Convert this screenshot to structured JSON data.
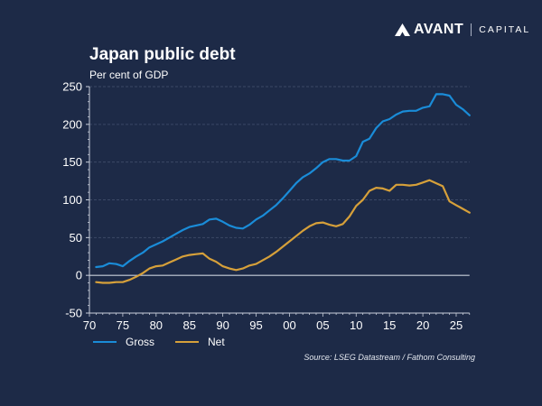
{
  "brand": {
    "name": "AVANT",
    "suffix": "CAPITAL"
  },
  "chart_data": {
    "type": "line",
    "title": "Japan public debt",
    "subtitle": "Per cent of GDP",
    "xlabel": "",
    "ylabel": "Per cent of GDP",
    "xlim": [
      1970,
      2027
    ],
    "ylim": [
      -50,
      250
    ],
    "yticks": [
      -50,
      0,
      50,
      100,
      150,
      200,
      250
    ],
    "xticks": [
      1970,
      1975,
      1980,
      1985,
      1990,
      1995,
      2000,
      2005,
      2010,
      2015,
      2020,
      2025
    ],
    "xtick_labels": [
      "70",
      "75",
      "80",
      "85",
      "90",
      "95",
      "00",
      "05",
      "10",
      "15",
      "20",
      "25"
    ],
    "grid": true,
    "legend_position": "bottom-left",
    "x": [
      1971,
      1972,
      1973,
      1974,
      1975,
      1976,
      1977,
      1978,
      1979,
      1980,
      1981,
      1982,
      1983,
      1984,
      1985,
      1986,
      1987,
      1988,
      1989,
      1990,
      1991,
      1992,
      1993,
      1994,
      1995,
      1996,
      1997,
      1998,
      1999,
      2000,
      2001,
      2002,
      2003,
      2004,
      2005,
      2006,
      2007,
      2008,
      2009,
      2010,
      2011,
      2012,
      2013,
      2014,
      2015,
      2016,
      2017,
      2018,
      2019,
      2020,
      2021,
      2022,
      2023,
      2024,
      2025,
      2026,
      2027
    ],
    "series": [
      {
        "name": "Gross",
        "color": "#1a8cd8",
        "values": [
          11,
          12,
          16,
          15,
          12,
          19,
          25,
          30,
          37,
          41,
          45,
          50,
          55,
          60,
          64,
          66,
          68,
          74,
          75,
          71,
          66,
          63,
          62,
          67,
          74,
          79,
          86,
          93,
          102,
          112,
          122,
          130,
          135,
          142,
          150,
          154,
          154,
          152,
          152,
          158,
          177,
          181,
          195,
          204,
          207,
          213,
          217,
          218,
          218,
          222,
          224,
          240,
          240,
          238,
          226,
          220,
          212
        ]
      },
      {
        "name": "Net",
        "color": "#d6a03a",
        "values": [
          -9,
          -10,
          -10,
          -9,
          -9,
          -6,
          -2,
          3,
          9,
          12,
          13,
          17,
          21,
          25,
          27,
          28,
          29,
          22,
          18,
          12,
          9,
          7,
          9,
          13,
          15,
          20,
          25,
          31,
          38,
          45,
          52,
          59,
          65,
          69,
          70,
          67,
          65,
          68,
          78,
          92,
          100,
          112,
          116,
          115,
          112,
          120,
          120,
          119,
          120,
          123,
          126,
          122,
          118,
          98,
          93,
          88,
          83
        ]
      }
    ],
    "source": "Source: LSEG Datastream / Fathom Consulting"
  }
}
